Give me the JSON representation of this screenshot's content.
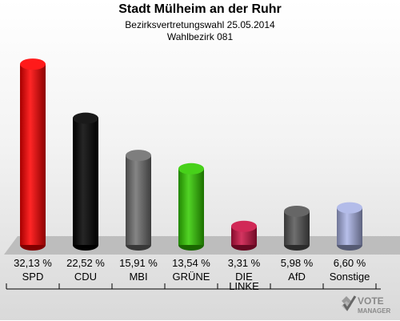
{
  "chart_data": {
    "type": "bar",
    "title": "Stadt Mülheim an der Ruhr",
    "subtitle": "Bezirksvertretungswahl 25.05.2014",
    "district": "Wahlbezirk 081",
    "categories": [
      "SPD",
      "CDU",
      "MBI",
      "GRÜNE",
      "DIE LINKE",
      "AfD",
      "Sonstige"
    ],
    "values": [
      32.13,
      22.52,
      15.91,
      13.54,
      3.31,
      5.98,
      6.6
    ],
    "value_labels": [
      "32,13 %",
      "22,52 %",
      "15,91 %",
      "13,54 %",
      "3,31 %",
      "5,98 %",
      "6,60 %"
    ],
    "colors": [
      "#ff0000",
      "#000000",
      "#707070",
      "#33cc00",
      "#cc1144",
      "#555555",
      "#aab4e6"
    ],
    "ylim": [
      0,
      33
    ],
    "grid": false,
    "legend": "none"
  },
  "logo": {
    "line1": "VOTE",
    "line2": "MANAGER"
  }
}
